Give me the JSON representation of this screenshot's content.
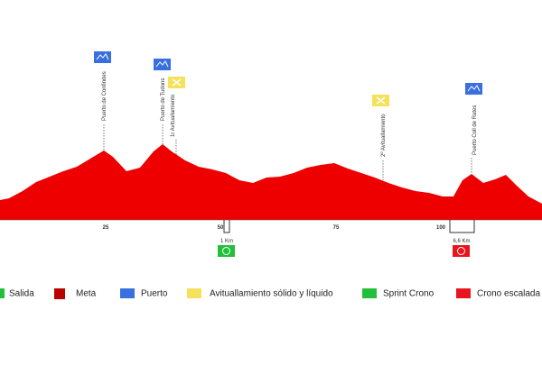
{
  "axis": {
    "ticks": [
      "25",
      "50",
      "75",
      "100"
    ]
  },
  "markers": [
    {
      "label": "Puerto de Confindes"
    },
    {
      "label": "Puerto de Tudons"
    },
    {
      "label": "1r Avituallamiento"
    },
    {
      "label": "2º Avituallamiento"
    },
    {
      "label": "Puerto Coll de Rates"
    }
  ],
  "segments": [
    "1 Km",
    "6,6 Km"
  ],
  "legend": [
    "Salida",
    "Meta",
    "Puerto",
    "Avituallamiento sólido y líquido",
    "Sprint Crono",
    "Crono escalada"
  ]
}
